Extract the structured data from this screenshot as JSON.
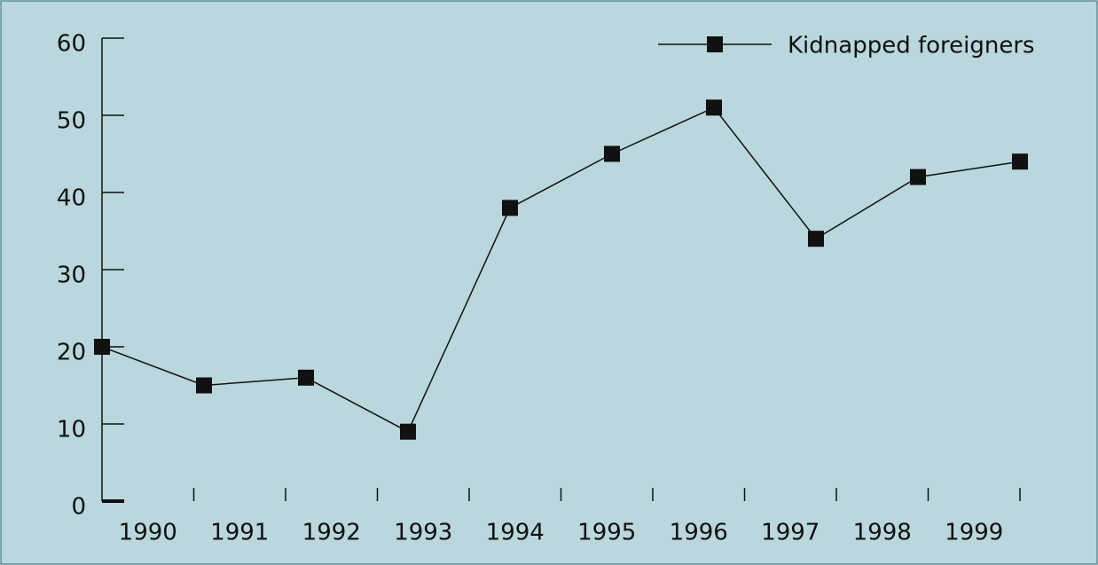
{
  "chart_data": {
    "type": "line",
    "categories": [
      "1990",
      "1991",
      "1992",
      "1993",
      "1994",
      "1995",
      "1996",
      "1997",
      "1998",
      "1999"
    ],
    "series": [
      {
        "name": "Kidnapped foreigners",
        "color": "#111111",
        "values": [
          20,
          15,
          16,
          9,
          38,
          45,
          51,
          34,
          42,
          44
        ]
      }
    ],
    "ylim": [
      0,
      60
    ],
    "yticks": [
      0,
      10,
      20,
      30,
      40,
      50,
      60
    ],
    "legend": "upper right",
    "background": "#b9d7dc"
  }
}
